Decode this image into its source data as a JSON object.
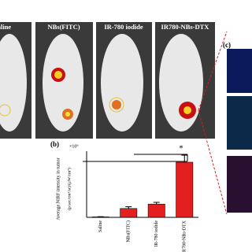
{
  "images": {
    "labels": [
      "Saline",
      "NBs(FITC)",
      "IR-780 iodide",
      "IR780-NBs-DTX"
    ]
  },
  "panel_c": "(c)",
  "chart_data": {
    "type": "bar",
    "panel": "(b)",
    "y_label": "Average NIRF intensity in tumor",
    "y_units": "(p/sec/cm²/sr)/(μW/cm²)",
    "multiplier": "×10⁹",
    "categories": [
      "Saline",
      "NBs(FITC)",
      "IR-780 iodide",
      "IR780-NBs-DTX"
    ],
    "values": [
      0.1,
      2,
      3,
      12.5
    ],
    "errors": [
      0.05,
      0.4,
      0.4,
      1.6
    ],
    "color": "#e41f1f",
    "ylim": [
      0,
      15
    ],
    "significance": "*"
  }
}
